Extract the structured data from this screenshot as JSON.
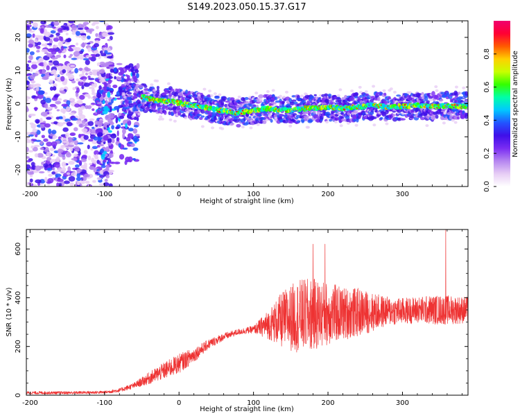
{
  "figure": {
    "title": "S149.2023.050.15.37.G17"
  },
  "colors": {
    "snr_line": "#ee3333",
    "axis": "#000000",
    "colormap": [
      "#ffffff",
      "#e7cdf5",
      "#b585f0",
      "#7a2cf2",
      "#3f0fe9",
      "#2254ff",
      "#00c8ff",
      "#00ffa8",
      "#33ff00",
      "#c8ff00",
      "#ffd000",
      "#ff5a00",
      "#ff0033",
      "#f0006e"
    ]
  },
  "chart_data": [
    {
      "type": "heatmap",
      "title": "S149.2023.050.15.37.G17",
      "xlabel": "Height of straight line (km)",
      "ylabel": "Frequency (Hz)",
      "xlim": [
        -205,
        388
      ],
      "ylim": [
        -25,
        25
      ],
      "x_ticks": [
        -200,
        -100,
        0,
        100,
        200,
        300
      ],
      "y_ticks": [
        -20,
        -10,
        0,
        10,
        20
      ],
      "colorbar": {
        "label": "Normalized spectral amplitude",
        "range": [
          0,
          1
        ],
        "ticks": [
          "0.0",
          "0.2",
          "0.4",
          "0.6",
          "0.8"
        ]
      },
      "dominant_frequency_track": {
        "x": [
          -50,
          -30,
          -10,
          0,
          20,
          40,
          60,
          80,
          100,
          120,
          140,
          160,
          180,
          200,
          220,
          240,
          260,
          280,
          300,
          320,
          340,
          360,
          388
        ],
        "y": [
          2.0,
          1.0,
          0.7,
          0.2,
          -0.6,
          -1.3,
          -2.2,
          -2.8,
          -2.0,
          -1.4,
          -2.0,
          -1.6,
          -1.3,
          -1.1,
          -1.4,
          -1.0,
          -0.5,
          -1.0,
          -0.8,
          -0.6,
          -0.9,
          -0.7,
          -0.8
        ]
      },
      "noise_region_x": [
        -205,
        -100
      ]
    },
    {
      "type": "line",
      "xlabel": "Height of straight line (km)",
      "ylabel": "SNR (10 * v/v)",
      "xlim": [
        -205,
        388
      ],
      "ylim": [
        0,
        680
      ],
      "x_ticks": [
        -200,
        -100,
        0,
        100,
        200,
        300
      ],
      "y_ticks": [
        0,
        200,
        400,
        600
      ],
      "envelope": {
        "x": [
          -205,
          -150,
          -100,
          -80,
          -60,
          -40,
          -20,
          0,
          20,
          40,
          60,
          80,
          100,
          120,
          140,
          160,
          180,
          200,
          220,
          240,
          260,
          280,
          300,
          320,
          340,
          360,
          388
        ],
        "mean": [
          10,
          10,
          12,
          20,
          40,
          70,
          100,
          130,
          165,
          210,
          240,
          260,
          270,
          290,
          310,
          325,
          330,
          335,
          335,
          340,
          340,
          345,
          345,
          350,
          350,
          350,
          350
        ],
        "spread": [
          6,
          6,
          6,
          8,
          12,
          25,
          35,
          40,
          30,
          20,
          15,
          12,
          15,
          60,
          120,
          150,
          150,
          130,
          110,
          100,
          80,
          60,
          55,
          55,
          60,
          60,
          55
        ]
      },
      "peaks": [
        {
          "x": 180,
          "y": 620
        },
        {
          "x": 196,
          "y": 620
        },
        {
          "x": 358,
          "y": 680
        }
      ]
    }
  ]
}
